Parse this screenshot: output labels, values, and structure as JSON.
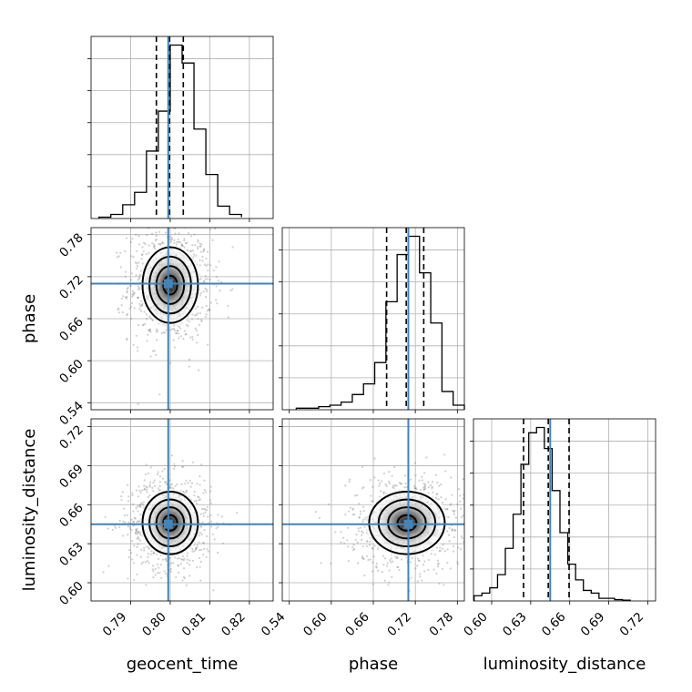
{
  "chart_data": {
    "type": "corner",
    "parameters": [
      "geocent_time",
      "phase",
      "luminosity_distance"
    ],
    "truths": {
      "geocent_time": 0.7995,
      "phase": 0.71,
      "luminosity_distance": 0.645
    },
    "truth_color": "#4682b4",
    "panels": [
      {
        "kind": "histogram",
        "param": "geocent_time",
        "xlim": [
          0.78,
          0.826
        ],
        "bins": [
          0.782,
          0.785,
          0.788,
          0.791,
          0.794,
          0.797,
          0.8,
          0.803,
          0.806,
          0.809,
          0.812,
          0.815,
          0.818
        ],
        "counts": [
          1,
          3,
          10,
          19,
          49,
          78,
          126,
          113,
          65,
          32,
          9,
          3,
          1
        ],
        "quantiles": [
          0.7965,
          0.7998,
          0.8033
        ]
      },
      {
        "kind": "histogram",
        "param": "phase",
        "xlim": [
          0.53,
          0.79
        ],
        "bins": [
          0.55,
          0.566,
          0.582,
          0.598,
          0.614,
          0.63,
          0.646,
          0.662,
          0.678,
          0.694,
          0.71,
          0.726,
          0.742,
          0.758,
          0.774,
          0.79
        ],
        "counts": [
          1,
          1,
          2,
          3,
          5,
          10,
          17,
          31,
          71,
          102,
          114,
          90,
          57,
          12,
          3
        ],
        "quantiles": [
          0.679,
          0.707,
          0.732
        ]
      },
      {
        "kind": "histogram",
        "param": "luminosity_distance",
        "xlim": [
          0.586,
          0.726
        ],
        "bins": [
          0.5865,
          0.5925,
          0.5985,
          0.6045,
          0.6105,
          0.6165,
          0.6225,
          0.6285,
          0.6345,
          0.6405,
          0.6465,
          0.6525,
          0.6585,
          0.6645,
          0.6705,
          0.6765,
          0.6825,
          0.6885,
          0.6945,
          0.7005,
          0.7065
        ],
        "counts": [
          2,
          3,
          5,
          10,
          20,
          33,
          52,
          64,
          66,
          58,
          42,
          26,
          14,
          8,
          4,
          3,
          1,
          1,
          0.5,
          0.3
        ],
        "quantiles": [
          0.6245,
          0.6435,
          0.6595
        ]
      },
      {
        "kind": "density2d",
        "x": "geocent_time",
        "y": "phase",
        "xlim": [
          0.78,
          0.826
        ],
        "ylim": [
          0.53,
          0.79
        ],
        "center": [
          0.8,
          0.708
        ],
        "sigma": [
          0.0035,
          0.027
        ]
      },
      {
        "kind": "density2d",
        "x": "geocent_time",
        "y": "luminosity_distance",
        "xlim": [
          0.78,
          0.826
        ],
        "ylim": [
          0.586,
          0.726
        ],
        "center": [
          0.8,
          0.646
        ],
        "sigma": [
          0.0035,
          0.012
        ]
      },
      {
        "kind": "density2d",
        "x": "phase",
        "y": "luminosity_distance",
        "xlim": [
          0.53,
          0.79
        ],
        "ylim": [
          0.586,
          0.726
        ],
        "center": [
          0.708,
          0.646
        ],
        "sigma": [
          0.027,
          0.012
        ]
      }
    ],
    "ticks": {
      "geocent_time": [
        "0.79",
        "0.80",
        "0.81",
        "0.82"
      ],
      "phase": [
        "0.54",
        "0.60",
        "0.66",
        "0.72",
        "0.78"
      ],
      "luminosity_distance": [
        "0.60",
        "0.63",
        "0.66",
        "0.69",
        "0.72"
      ]
    },
    "axis_labels": {
      "bottom": [
        "geocent_time",
        "phase",
        "luminosity_distance"
      ],
      "left": [
        "phase",
        "luminosity_distance"
      ]
    }
  }
}
